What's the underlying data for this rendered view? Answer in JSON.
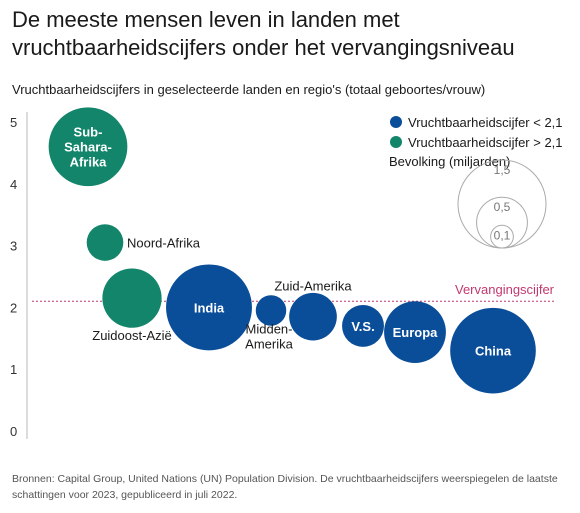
{
  "title": "De meeste mensen leven in landen met vruchtbaarheidscijfers onder het vervangingsniveau",
  "subtitle": "Vruchtbaarheidscijfers in geselecteerde landen en regio's (totaal geboortes/vrouw)",
  "source": "Bronnen: Capital Group, United Nations (UN) Population Division. De vruchtbaarheidscijfers weerspiegelen de laatste schattingen voor 2023, gepubliceerd in juli 2022.",
  "colors": {
    "below": "#0a4d99",
    "above": "#13856b",
    "reference": "#c2386f"
  },
  "chart_data": {
    "type": "scatter",
    "ylim": [
      0,
      5
    ],
    "yticks": [
      0,
      1,
      2,
      3,
      4,
      5
    ],
    "reference_line": {
      "value": 2.1,
      "label": "Vervangingscijfer"
    },
    "legend": {
      "below_label": "Vruchtbaarheidscijfer < 2,1",
      "above_label": "Vruchtbaarheidscijfer > 2,1",
      "size_title": "Bevolking (miljarden)",
      "size_values": [
        1.5,
        0.5,
        0.1
      ],
      "size_labels": [
        "1,5",
        "0,5",
        "0,1"
      ]
    },
    "points": [
      {
        "name": "Sub-Sahara-Afrika",
        "lines": [
          "Sub-",
          "Sahara-",
          "Afrika"
        ],
        "y": 4.6,
        "population": 1.2,
        "group": "above"
      },
      {
        "name": "Noord-Afrika",
        "lines": [
          "Noord-Afrika"
        ],
        "y": 3.05,
        "population": 0.26,
        "group": "above"
      },
      {
        "name": "Zuidoost-Azië",
        "lines": [
          "Zuidoost-Azië"
        ],
        "y": 2.15,
        "population": 0.68,
        "group": "above"
      },
      {
        "name": "India",
        "lines": [
          "India"
        ],
        "y": 2.0,
        "population": 1.43,
        "group": "below"
      },
      {
        "name": "Midden-Amerika",
        "lines": [
          "Midden-",
          "Amerika"
        ],
        "y": 1.95,
        "population": 0.18,
        "group": "below"
      },
      {
        "name": "Zuid-Amerika",
        "lines": [
          "Zuid-Amerika"
        ],
        "y": 1.85,
        "population": 0.44,
        "group": "below"
      },
      {
        "name": "V.S.",
        "lines": [
          "V.S."
        ],
        "y": 1.7,
        "population": 0.34,
        "group": "below"
      },
      {
        "name": "Europa",
        "lines": [
          "Europa"
        ],
        "y": 1.6,
        "population": 0.74,
        "group": "below"
      },
      {
        "name": "China",
        "lines": [
          "China"
        ],
        "y": 1.3,
        "population": 1.42,
        "group": "below"
      }
    ]
  }
}
